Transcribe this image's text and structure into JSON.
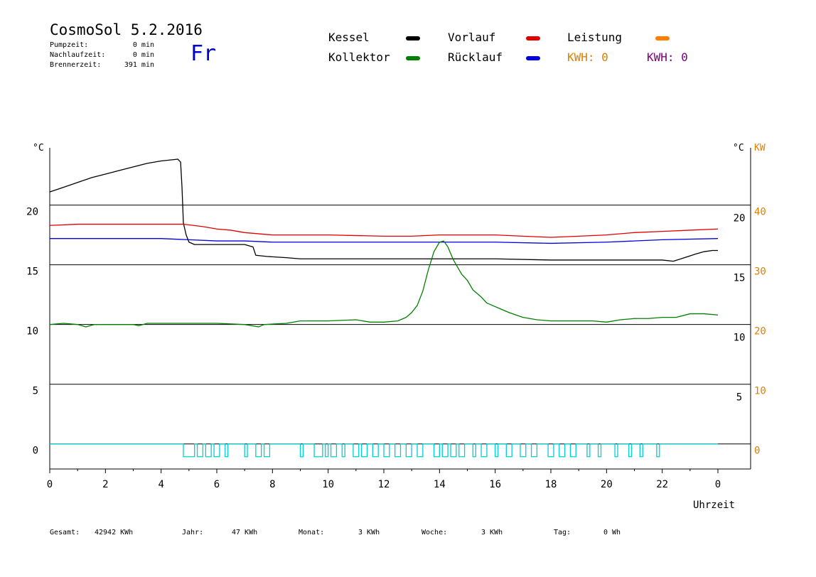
{
  "header": {
    "title": "CosmoSol 5.2.2016",
    "day": "Fr",
    "info": [
      {
        "label": "Pumpzeit:",
        "value": "0 min"
      },
      {
        "label": "Nachlaufzeit:",
        "value": "0 min"
      },
      {
        "label": "Brennerzeit:",
        "value": "391 min"
      }
    ]
  },
  "legend": {
    "kessel": {
      "label": "Kessel",
      "color": "#000000"
    },
    "vorlauf": {
      "label": "Vorlauf",
      "color": "#e00000"
    },
    "leistung": {
      "label": "Leistung",
      "color": "#ff8000"
    },
    "kollektor": {
      "label": "Kollektor",
      "color": "#008000"
    },
    "ruecklauf": {
      "label": "Rücklauf",
      "color": "#0000e0"
    },
    "kwh1": {
      "label": "KWH: 0",
      "color": "#e08000"
    },
    "kwh2": {
      "label": "KWH: 0",
      "color": "#800080"
    }
  },
  "footer": [
    {
      "label": "Gesamt:",
      "value": "42942 KWh"
    },
    {
      "label": "Jahr:",
      "value": "47 KWh"
    },
    {
      "label": "Monat:",
      "value": "3 KWh"
    },
    {
      "label": "Woche:",
      "value": "3 KWh"
    },
    {
      "label": "Tag:",
      "value": "0 Wh"
    }
  ],
  "chart_data": {
    "type": "line",
    "xlabel": "Uhrzeit",
    "x_ticks": [
      "0",
      "2",
      "4",
      "6",
      "8",
      "10",
      "12",
      "14",
      "16",
      "18",
      "20",
      "22",
      "0"
    ],
    "left_unit": "°C",
    "right_unit": "°C",
    "kw_unit": "KW",
    "y_ticks_left": [
      "20",
      "15",
      "10",
      "5",
      "0"
    ],
    "y_ticks_left_values": [
      20,
      15,
      10,
      5,
      0
    ],
    "y_ticks_right": [
      "20",
      "15",
      "10",
      "5"
    ],
    "y_ticks_right_values": [
      20,
      15,
      10,
      5
    ],
    "kw_ticks": [
      "40",
      "30",
      "20",
      "10",
      "0"
    ],
    "kw_ticks_values": [
      40,
      30,
      20,
      10,
      0
    ],
    "xlim": [
      0,
      24
    ],
    "ylim": [
      -2.1,
      24.8
    ],
    "pump_color": "#00d0d0",
    "series": [
      {
        "name": "Kessel",
        "color": "#000000",
        "points": [
          [
            0,
            21.1
          ],
          [
            0.5,
            21.5
          ],
          [
            1,
            21.9
          ],
          [
            1.5,
            22.3
          ],
          [
            2,
            22.6
          ],
          [
            2.5,
            22.9
          ],
          [
            3,
            23.2
          ],
          [
            3.5,
            23.5
          ],
          [
            4,
            23.7
          ],
          [
            4.6,
            23.85
          ],
          [
            4.7,
            23.6
          ],
          [
            4.75,
            21.5
          ],
          [
            4.8,
            18.5
          ],
          [
            4.9,
            17.5
          ],
          [
            5,
            16.9
          ],
          [
            5.2,
            16.7
          ],
          [
            6,
            16.7
          ],
          [
            7,
            16.7
          ],
          [
            7.3,
            16.5
          ],
          [
            7.4,
            15.8
          ],
          [
            7.8,
            15.7
          ],
          [
            8.5,
            15.6
          ],
          [
            9,
            15.5
          ],
          [
            10,
            15.5
          ],
          [
            12,
            15.5
          ],
          [
            14,
            15.5
          ],
          [
            16,
            15.5
          ],
          [
            18,
            15.4
          ],
          [
            20,
            15.4
          ],
          [
            22,
            15.4
          ],
          [
            22.4,
            15.3
          ],
          [
            22.8,
            15.6
          ],
          [
            23.2,
            15.9
          ],
          [
            23.5,
            16.1
          ],
          [
            23.8,
            16.2
          ],
          [
            24,
            16.2
          ]
        ]
      },
      {
        "name": "Vorlauf",
        "color": "#e00000",
        "points": [
          [
            0,
            18.3
          ],
          [
            1,
            18.4
          ],
          [
            2,
            18.4
          ],
          [
            3,
            18.4
          ],
          [
            4,
            18.4
          ],
          [
            4.8,
            18.4
          ],
          [
            5.5,
            18.2
          ],
          [
            6,
            18.0
          ],
          [
            6.5,
            17.9
          ],
          [
            7,
            17.7
          ],
          [
            8,
            17.5
          ],
          [
            9,
            17.5
          ],
          [
            10,
            17.5
          ],
          [
            12,
            17.4
          ],
          [
            13,
            17.4
          ],
          [
            14,
            17.5
          ],
          [
            15,
            17.5
          ],
          [
            16,
            17.5
          ],
          [
            17,
            17.4
          ],
          [
            18,
            17.3
          ],
          [
            19,
            17.4
          ],
          [
            20,
            17.5
          ],
          [
            21,
            17.7
          ],
          [
            22,
            17.8
          ],
          [
            23,
            17.9
          ],
          [
            24,
            18.0
          ]
        ]
      },
      {
        "name": "Rücklauf",
        "color": "#0000e0",
        "points": [
          [
            0,
            17.2
          ],
          [
            2,
            17.2
          ],
          [
            4,
            17.2
          ],
          [
            5,
            17.1
          ],
          [
            6,
            17.0
          ],
          [
            7,
            17.0
          ],
          [
            8,
            16.9
          ],
          [
            10,
            16.9
          ],
          [
            12,
            16.9
          ],
          [
            14,
            16.9
          ],
          [
            16,
            16.9
          ],
          [
            18,
            16.8
          ],
          [
            20,
            16.9
          ],
          [
            22,
            17.1
          ],
          [
            24,
            17.2
          ]
        ]
      },
      {
        "name": "Kollektor",
        "color": "#008000",
        "points": [
          [
            0,
            10.0
          ],
          [
            0.5,
            10.1
          ],
          [
            1,
            10.0
          ],
          [
            1.3,
            9.8
          ],
          [
            1.6,
            10.0
          ],
          [
            2,
            10.0
          ],
          [
            3,
            10.0
          ],
          [
            3.2,
            9.9
          ],
          [
            3.5,
            10.1
          ],
          [
            5,
            10.1
          ],
          [
            6,
            10.1
          ],
          [
            7,
            10.0
          ],
          [
            7.5,
            9.8
          ],
          [
            7.7,
            10.0
          ],
          [
            8.5,
            10.1
          ],
          [
            9,
            10.3
          ],
          [
            10,
            10.3
          ],
          [
            11,
            10.4
          ],
          [
            11.5,
            10.2
          ],
          [
            12,
            10.2
          ],
          [
            12.5,
            10.3
          ],
          [
            12.8,
            10.6
          ],
          [
            13,
            11.0
          ],
          [
            13.2,
            11.6
          ],
          [
            13.4,
            12.8
          ],
          [
            13.6,
            14.6
          ],
          [
            13.8,
            16.1
          ],
          [
            14,
            16.9
          ],
          [
            14.15,
            17.0
          ],
          [
            14.3,
            16.5
          ],
          [
            14.5,
            15.4
          ],
          [
            14.8,
            14.2
          ],
          [
            15,
            13.7
          ],
          [
            15.2,
            12.9
          ],
          [
            15.5,
            12.3
          ],
          [
            15.7,
            11.8
          ],
          [
            15.9,
            11.6
          ],
          [
            16.2,
            11.3
          ],
          [
            16.5,
            11.0
          ],
          [
            17,
            10.6
          ],
          [
            17.5,
            10.4
          ],
          [
            18,
            10.3
          ],
          [
            18.5,
            10.3
          ],
          [
            19,
            10.3
          ],
          [
            19.5,
            10.3
          ],
          [
            20,
            10.2
          ],
          [
            20.5,
            10.4
          ],
          [
            21,
            10.5
          ],
          [
            21.5,
            10.5
          ],
          [
            22,
            10.6
          ],
          [
            22.5,
            10.6
          ],
          [
            23,
            10.9
          ],
          [
            23.5,
            10.9
          ],
          [
            24,
            10.8
          ]
        ]
      }
    ],
    "pump_pulses": [
      [
        4.8,
        5.2
      ],
      [
        5.3,
        5.5
      ],
      [
        5.6,
        5.8
      ],
      [
        5.9,
        6.1
      ],
      [
        6.3,
        6.4
      ],
      [
        7.0,
        7.1
      ],
      [
        7.4,
        7.6
      ],
      [
        7.7,
        7.9
      ],
      [
        9.0,
        9.1
      ],
      [
        9.5,
        9.8
      ],
      [
        9.9,
        10.0
      ],
      [
        10.1,
        10.3
      ],
      [
        10.5,
        10.6
      ],
      [
        10.9,
        11.1
      ],
      [
        11.2,
        11.4
      ],
      [
        11.6,
        11.8
      ],
      [
        12.0,
        12.2
      ],
      [
        12.4,
        12.6
      ],
      [
        12.8,
        13.0
      ],
      [
        13.2,
        13.4
      ],
      [
        13.8,
        14.0
      ],
      [
        14.1,
        14.3
      ],
      [
        14.4,
        14.6
      ],
      [
        14.7,
        14.9
      ],
      [
        15.2,
        15.3
      ],
      [
        15.5,
        15.7
      ],
      [
        16.0,
        16.1
      ],
      [
        16.4,
        16.6
      ],
      [
        16.9,
        17.1
      ],
      [
        17.3,
        17.5
      ],
      [
        17.9,
        18.1
      ],
      [
        18.3,
        18.5
      ],
      [
        18.7,
        18.9
      ],
      [
        19.3,
        19.4
      ],
      [
        19.7,
        19.8
      ],
      [
        20.3,
        20.4
      ],
      [
        20.8,
        20.9
      ],
      [
        21.2,
        21.3
      ],
      [
        21.8,
        21.9
      ]
    ]
  }
}
